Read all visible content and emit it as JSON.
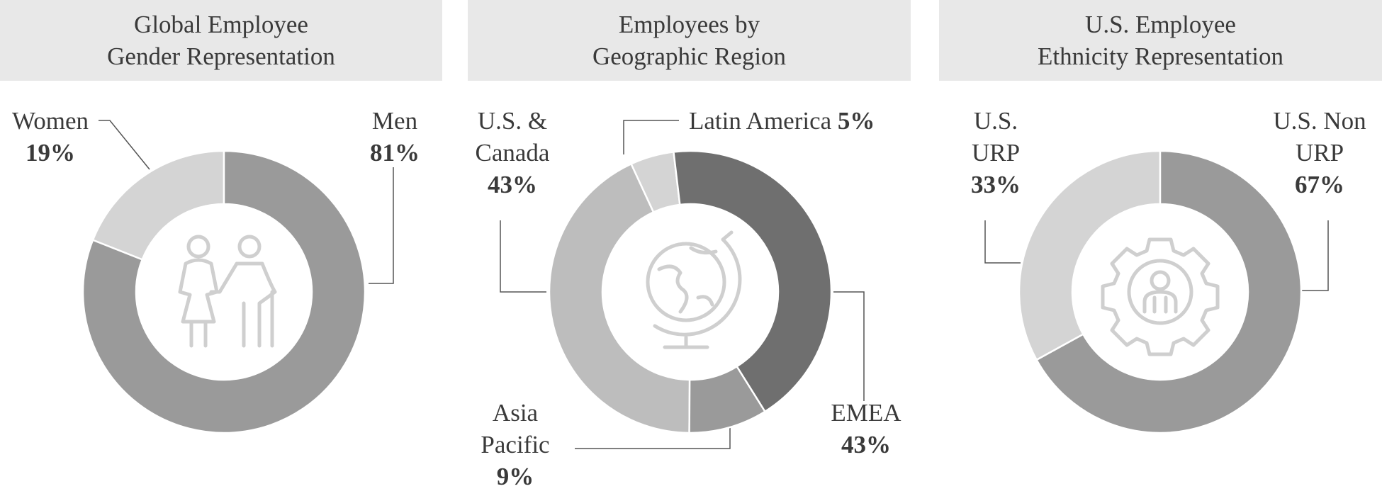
{
  "chart_data": [
    {
      "type": "donut",
      "title": [
        "Global Employee",
        "Gender Representation"
      ],
      "categories": [
        "Men",
        "Women"
      ],
      "values": [
        81,
        19
      ],
      "value_labels": [
        "81%",
        "19%"
      ],
      "colors": [
        "#9a9a9a",
        "#d4d4d4"
      ]
    },
    {
      "type": "donut",
      "title": [
        "Employees by",
        "Geographic Region"
      ],
      "categories": [
        "EMEA",
        "Asia Pacific",
        "U.S. & Canada",
        "Latin America"
      ],
      "values": [
        43,
        9,
        43,
        5
      ],
      "value_labels": [
        "43%",
        "9%",
        "43%",
        "5%"
      ],
      "colors": [
        "#6f6f6f",
        "#9a9a9a",
        "#bdbdbd",
        "#d4d4d4"
      ]
    },
    {
      "type": "donut",
      "title": [
        "U.S. Employee",
        "Ethnicity Representation"
      ],
      "categories": [
        "U.S. Non URP",
        "U.S. URP"
      ],
      "values": [
        67,
        33
      ],
      "value_labels": [
        "67%",
        "33%"
      ],
      "colors": [
        "#9a9a9a",
        "#d4d4d4"
      ]
    }
  ]
}
